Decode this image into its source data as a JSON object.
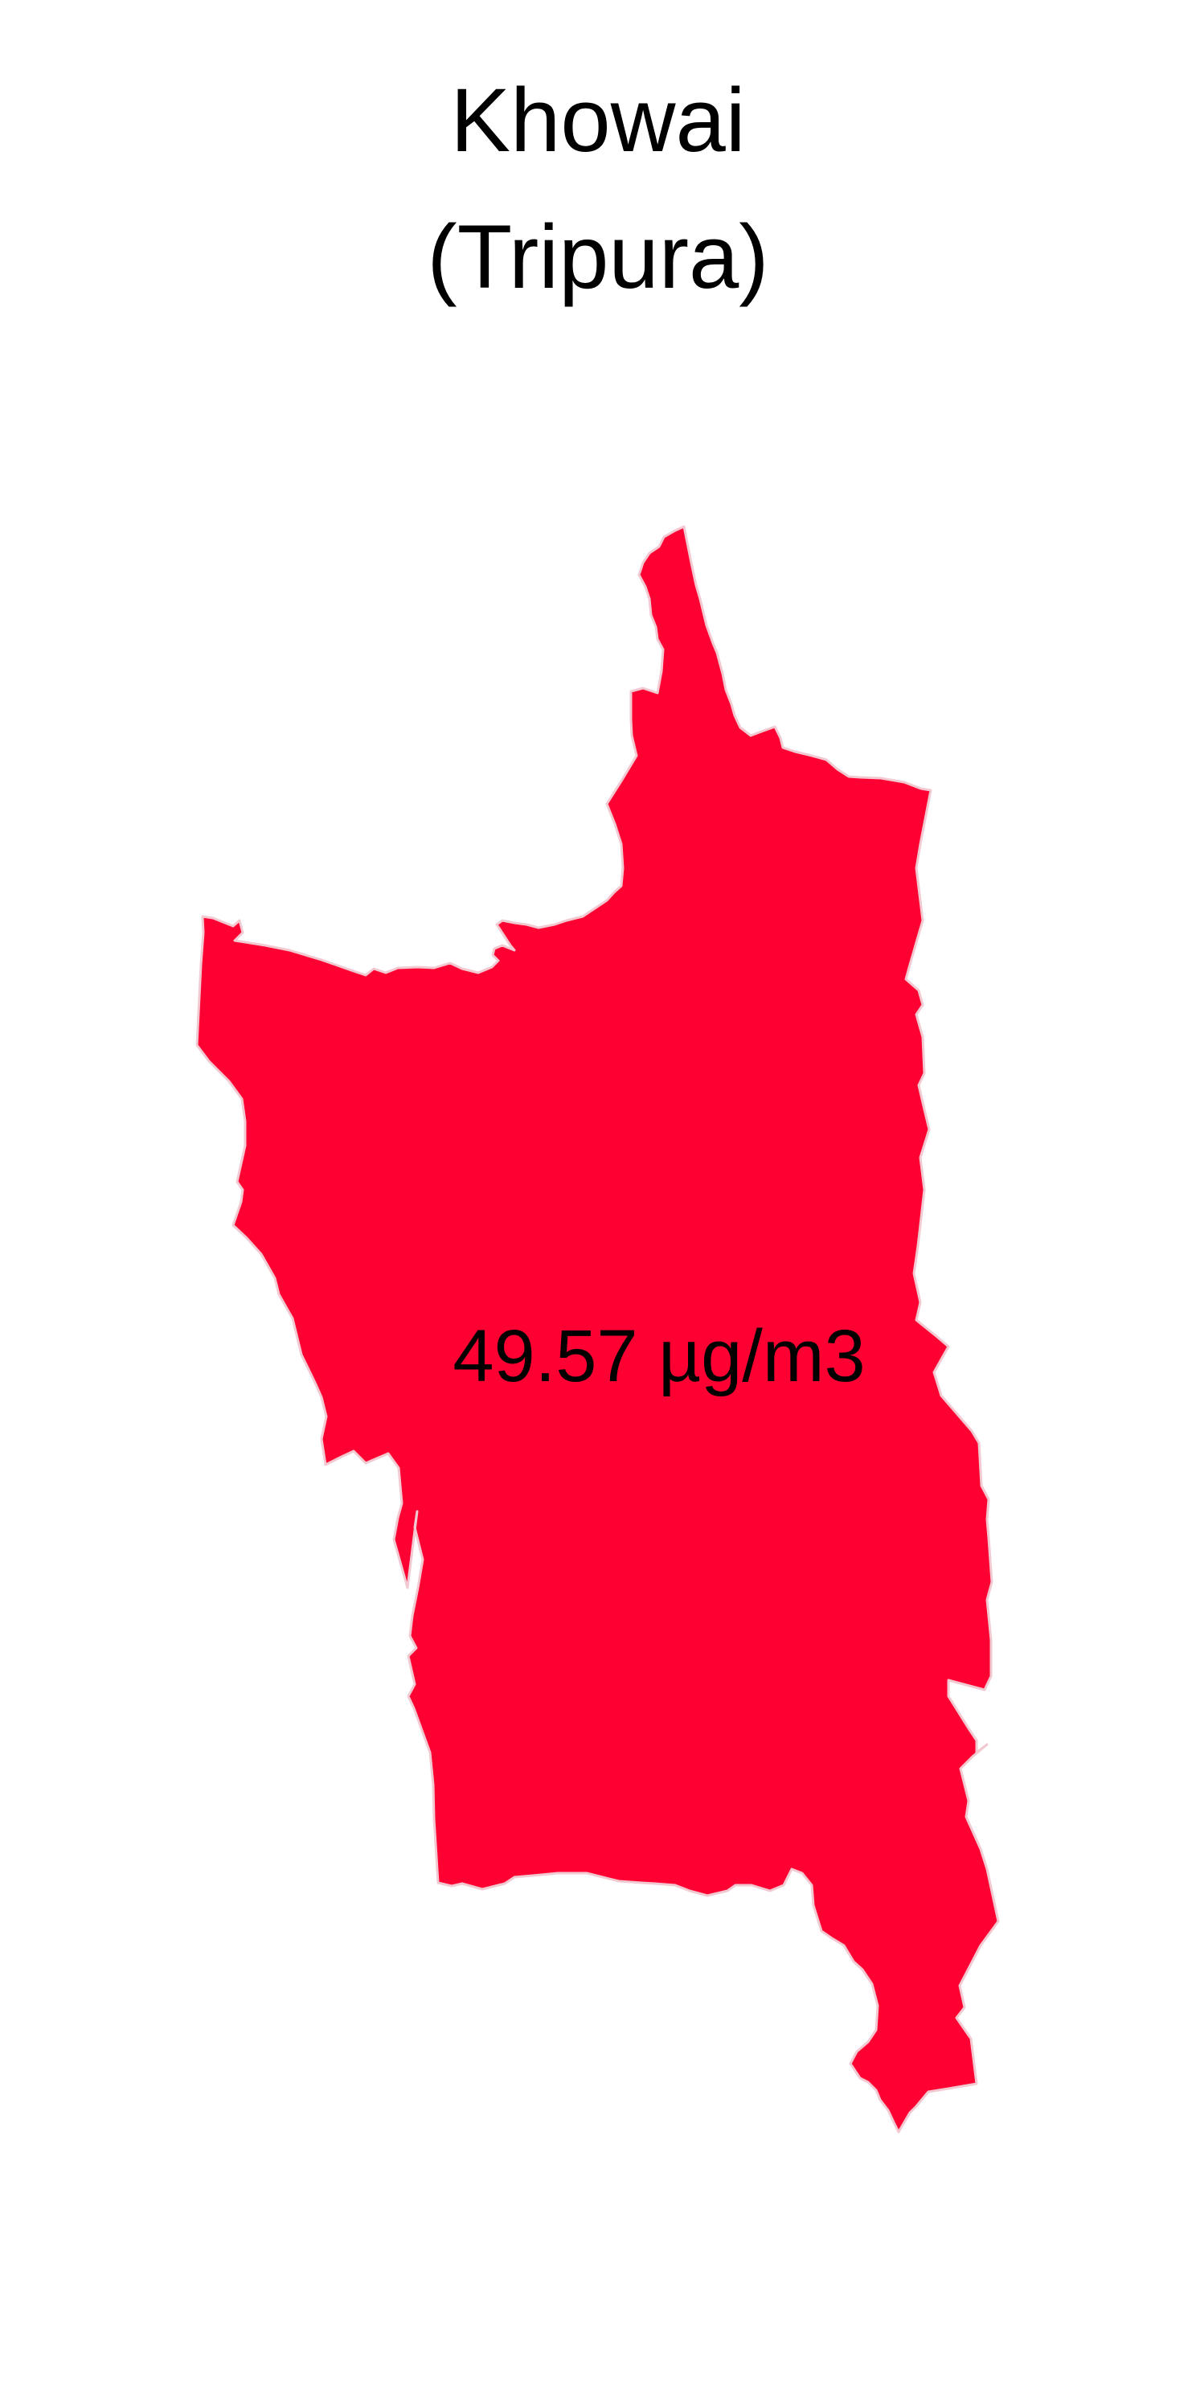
{
  "title": {
    "district": "Khowai",
    "state": "(Tripura)"
  },
  "region": {
    "name": "Khowai",
    "value_label": "49.57 µg/m3",
    "value": 49.57,
    "unit": "µg/m3",
    "fill_color": "#ff0033"
  }
}
